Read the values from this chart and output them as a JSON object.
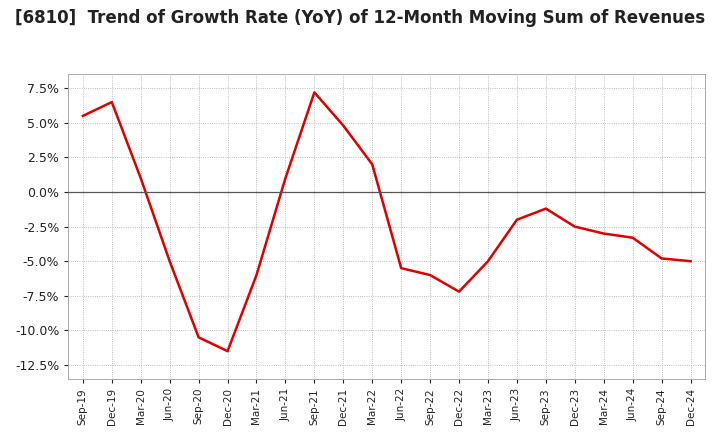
{
  "title": "[6810]  Trend of Growth Rate (YoY) of 12-Month Moving Sum of Revenues",
  "title_fontsize": 12,
  "line_color": "#dd0000",
  "background_color": "#ffffff",
  "grid_color": "#aaaaaa",
  "ylim": [
    -0.135,
    0.085
  ],
  "yticks": [
    -0.125,
    -0.1,
    -0.075,
    -0.05,
    -0.025,
    0.0,
    0.025,
    0.05,
    0.075
  ],
  "dates": [
    "Sep-19",
    "Dec-19",
    "Mar-20",
    "Jun-20",
    "Sep-20",
    "Dec-20",
    "Mar-21",
    "Jun-21",
    "Sep-21",
    "Dec-21",
    "Mar-22",
    "Jun-22",
    "Sep-22",
    "Dec-22",
    "Mar-23",
    "Jun-23",
    "Sep-23",
    "Dec-23",
    "Mar-24",
    "Jun-24",
    "Sep-24",
    "Dec-24"
  ],
  "values": [
    0.055,
    0.065,
    0.01,
    -0.05,
    -0.105,
    -0.115,
    -0.06,
    0.01,
    0.072,
    0.048,
    0.02,
    -0.055,
    -0.06,
    -0.072,
    -0.05,
    -0.02,
    -0.012,
    -0.025,
    -0.03,
    -0.033,
    -0.048,
    -0.05
  ]
}
